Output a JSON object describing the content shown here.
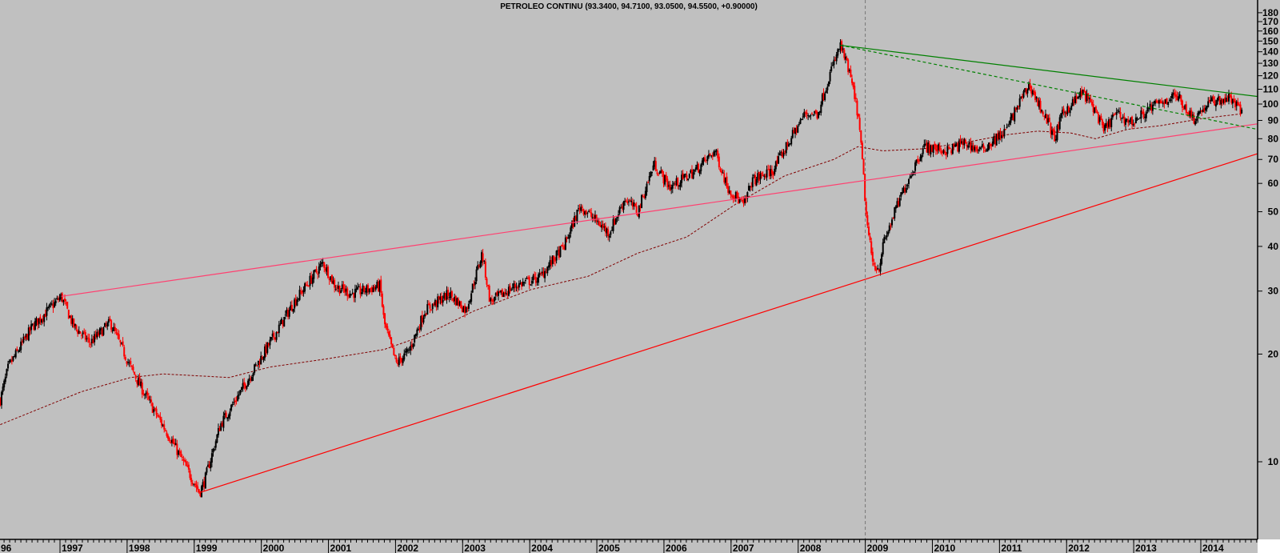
{
  "chart_data": {
    "type": "candlestick",
    "title": "PETROLEO CONTINU (93.3400, 94.7100, 93.0500, 94.5500, +0.90000)",
    "y_scale": "log",
    "ylim": [
      6.7,
      195
    ],
    "xlim": [
      1996.11,
      2014.84
    ],
    "grid": false,
    "y_axis_position": "right",
    "y_ticks": [
      10,
      20,
      30,
      40,
      50,
      60,
      70,
      80,
      90,
      100,
      110,
      120,
      130,
      140,
      150,
      160,
      170,
      180
    ],
    "x_ticks": [
      {
        "label": "96",
        "year": 1996.0
      },
      {
        "label": "1997",
        "year": 1997
      },
      {
        "label": "1998",
        "year": 1998
      },
      {
        "label": "1999",
        "year": 1999
      },
      {
        "label": "2000",
        "year": 2000
      },
      {
        "label": "2001",
        "year": 2001
      },
      {
        "label": "2002",
        "year": 2002
      },
      {
        "label": "2003",
        "year": 2003
      },
      {
        "label": "2004",
        "year": 2004
      },
      {
        "label": "2005",
        "year": 2005
      },
      {
        "label": "2006",
        "year": 2006
      },
      {
        "label": "2007",
        "year": 2007
      },
      {
        "label": "2008",
        "year": 2008
      },
      {
        "label": "2009",
        "year": 2009
      },
      {
        "label": "2010",
        "year": 2010
      },
      {
        "label": "2011",
        "year": 2011
      },
      {
        "label": "2012",
        "year": 2012
      },
      {
        "label": "2013",
        "year": 2013
      },
      {
        "label": "2014",
        "year": 2014
      }
    ],
    "close_path": [
      [
        1996.11,
        14.9
      ],
      [
        1996.23,
        18.4
      ],
      [
        1996.59,
        23.9
      ],
      [
        1997.02,
        29
      ],
      [
        1997.2,
        24
      ],
      [
        1997.45,
        21.5
      ],
      [
        1997.75,
        24.5
      ],
      [
        1998.05,
        18.4
      ],
      [
        1998.3,
        15
      ],
      [
        1998.66,
        11.5
      ],
      [
        1999.08,
        8.2
      ],
      [
        1999.15,
        8.8
      ],
      [
        1999.39,
        12.7
      ],
      [
        1999.76,
        16.5
      ],
      [
        2000.13,
        21.5
      ],
      [
        2000.49,
        28
      ],
      [
        2000.92,
        36
      ],
      [
        2001.1,
        31
      ],
      [
        2001.34,
        29.5
      ],
      [
        2001.77,
        31
      ],
      [
        2001.83,
        24.5
      ],
      [
        2002.01,
        18.8
      ],
      [
        2002.2,
        20.4
      ],
      [
        2002.44,
        26.5
      ],
      [
        2002.8,
        29.5
      ],
      [
        2003.05,
        26.5
      ],
      [
        2003.29,
        38.3
      ],
      [
        2003.41,
        28
      ],
      [
        2003.78,
        31
      ],
      [
        2004.14,
        32.7
      ],
      [
        2004.51,
        40
      ],
      [
        2004.75,
        52
      ],
      [
        2005.0,
        47
      ],
      [
        2005.18,
        43.6
      ],
      [
        2005.42,
        54.5
      ],
      [
        2005.61,
        50
      ],
      [
        2005.85,
        68
      ],
      [
        2006.09,
        58.5
      ],
      [
        2006.46,
        65
      ],
      [
        2006.76,
        74
      ],
      [
        2006.95,
        58.5
      ],
      [
        2007.19,
        52
      ],
      [
        2007.31,
        61
      ],
      [
        2007.62,
        65
      ],
      [
        2007.92,
        82
      ],
      [
        2008.1,
        94
      ],
      [
        2008.29,
        94
      ],
      [
        2008.47,
        121
      ],
      [
        2008.63,
        146
      ],
      [
        2008.77,
        121
      ],
      [
        2008.89,
        94
      ],
      [
        2008.96,
        68
      ],
      [
        2009.02,
        47
      ],
      [
        2009.11,
        36
      ],
      [
        2009.2,
        34.5
      ],
      [
        2009.26,
        40
      ],
      [
        2009.44,
        50
      ],
      [
        2009.63,
        61
      ],
      [
        2009.87,
        76
      ],
      [
        2010.23,
        74
      ],
      [
        2010.48,
        78
      ],
      [
        2010.72,
        74
      ],
      [
        2011.09,
        84
      ],
      [
        2011.33,
        104
      ],
      [
        2011.45,
        113
      ],
      [
        2011.57,
        101
      ],
      [
        2011.7,
        91
      ],
      [
        2011.82,
        80
      ],
      [
        2011.94,
        94
      ],
      [
        2012.24,
        108
      ],
      [
        2012.43,
        96
      ],
      [
        2012.55,
        84
      ],
      [
        2012.73,
        94
      ],
      [
        2012.97,
        88.7
      ],
      [
        2013.28,
        98.5
      ],
      [
        2013.64,
        106
      ],
      [
        2013.89,
        91
      ],
      [
        2014.13,
        101
      ],
      [
        2014.44,
        104
      ],
      [
        2014.62,
        94.55
      ]
    ],
    "moving_average": [
      [
        1996.11,
        12.7
      ],
      [
        1997.32,
        15.7
      ],
      [
        1998.05,
        17.2
      ],
      [
        1998.54,
        17.6
      ],
      [
        1999.52,
        17.2
      ],
      [
        2000.13,
        18.4
      ],
      [
        2000.98,
        19.4
      ],
      [
        2001.83,
        20.6
      ],
      [
        2002.44,
        22.6
      ],
      [
        2003.17,
        26.4
      ],
      [
        2004.02,
        30.3
      ],
      [
        2004.87,
        33
      ],
      [
        2005.61,
        38.3
      ],
      [
        2006.34,
        42.5
      ],
      [
        2007.07,
        52.5
      ],
      [
        2007.8,
        63
      ],
      [
        2008.53,
        70
      ],
      [
        2008.89,
        76
      ],
      [
        2009.26,
        74
      ],
      [
        2009.87,
        75
      ],
      [
        2010.48,
        78
      ],
      [
        2011.09,
        82
      ],
      [
        2011.57,
        84
      ],
      [
        2012.06,
        83
      ],
      [
        2012.43,
        80
      ],
      [
        2012.91,
        85
      ],
      [
        2013.4,
        87
      ],
      [
        2014.01,
        91
      ],
      [
        2014.62,
        94
      ]
    ],
    "trendlines": [
      {
        "color": "#ff4070",
        "style": "solid",
        "from": [
          1997.02,
          29
        ],
        "to": [
          2014.84,
          88
        ]
      },
      {
        "color": "#ff0000",
        "style": "solid",
        "from": [
          1999.08,
          8.2
        ],
        "to": [
          2014.84,
          72.6
        ]
      },
      {
        "color": "#008000",
        "style": "solid",
        "from": [
          2008.63,
          146
        ],
        "to": [
          2014.84,
          105
        ]
      },
      {
        "color": "#008000",
        "style": "dashed",
        "from": [
          2008.63,
          146
        ],
        "to": [
          2014.84,
          85
        ]
      }
    ],
    "vertical_marker_year": 2009.0,
    "colors": {
      "background": "#c0c0c0",
      "up": "#000000",
      "down": "#ff0000",
      "moving_average": "#800000"
    }
  }
}
